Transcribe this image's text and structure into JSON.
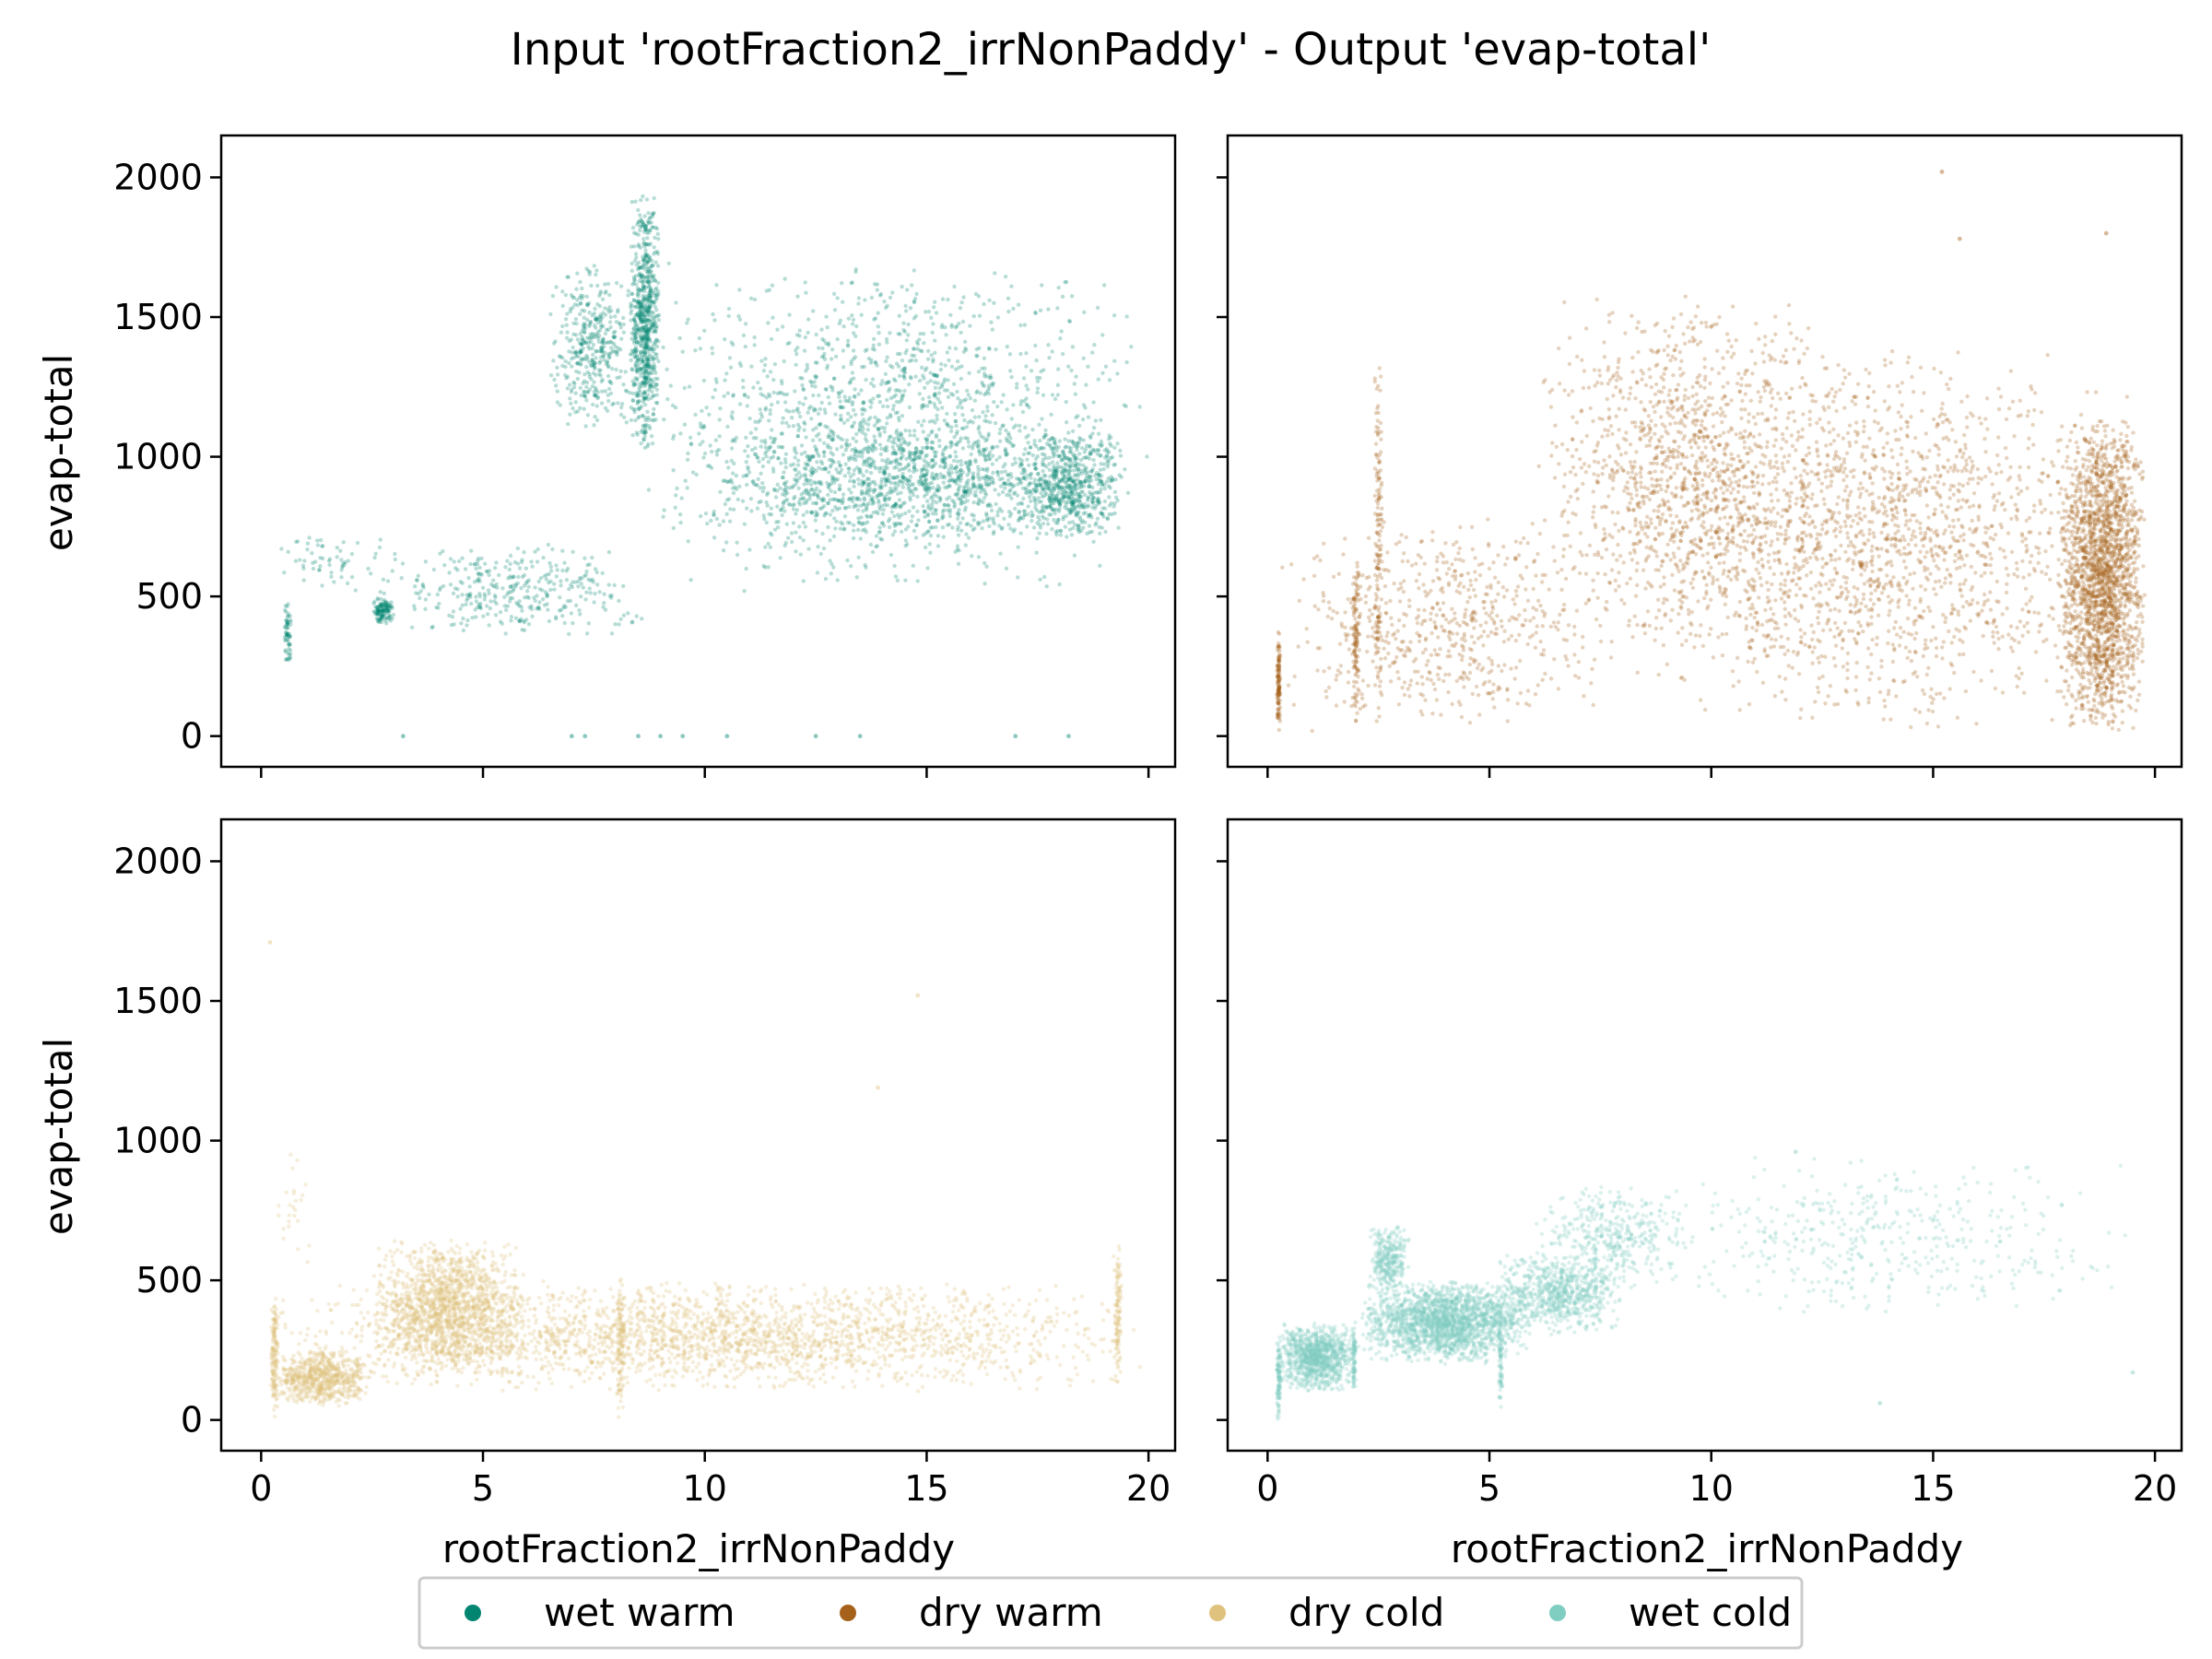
{
  "chart_data": {
    "type": "scatter",
    "title": "Input 'rootFraction2_irrNonPaddy' - Output 'evap-total'",
    "xlabel": "rootFraction2_irrNonPaddy",
    "ylabel": "evap-total",
    "xlim": [
      -0.9,
      20.6
    ],
    "ylim": [
      -110,
      2150
    ],
    "xticks": [
      0,
      5,
      10,
      15,
      20
    ],
    "yticks": [
      0,
      500,
      1000,
      1500,
      2000
    ],
    "grid": false,
    "legend_position": "bottom-center",
    "legend": [
      {
        "label": "wet warm",
        "color": "#018571"
      },
      {
        "label": "dry warm",
        "color": "#a6611a"
      },
      {
        "label": "dry cold",
        "color": "#dfc27d"
      },
      {
        "label": "wet cold",
        "color": "#80cdc1"
      }
    ],
    "panels": [
      {
        "name": "wet warm",
        "color": "#018571",
        "position": "top-left",
        "clusters": [
          {
            "x": [
              6.5,
              8.5
            ],
            "y": [
              1100,
              1700
            ],
            "n": 400
          },
          {
            "x": [
              8.3,
              9.0
            ],
            "y": [
              1000,
              1950
            ],
            "n": 700
          },
          {
            "x": [
              8.6,
              20.0
            ],
            "y": [
              500,
              1700
            ],
            "n": 1600
          },
          {
            "x": [
              10.0,
              19.5
            ],
            "y": [
              700,
              1100
            ],
            "n": 900
          },
          {
            "x": [
              2.5,
              9.0
            ],
            "y": [
              350,
              700
            ],
            "n": 350
          },
          {
            "x": [
              0.2,
              3.0
            ],
            "y": [
              500,
              750
            ],
            "n": 60
          },
          {
            "x": [
              0.5,
              0.7
            ],
            "y": [
              250,
              500
            ],
            "n": 60
          },
          {
            "x": [
              2.5,
              3.0
            ],
            "y": [
              400,
              500
            ],
            "n": 120
          },
          {
            "x": [
              17.0,
              19.5
            ],
            "y": [
              700,
              1100
            ],
            "n": 500
          }
        ],
        "outliers": [
          [
            3.2,
            0
          ],
          [
            7.0,
            0
          ],
          [
            7.3,
            0
          ],
          [
            8.5,
            0
          ],
          [
            9.0,
            0
          ],
          [
            9.5,
            0
          ],
          [
            10.5,
            0
          ],
          [
            12.5,
            0
          ],
          [
            13.5,
            0
          ],
          [
            17.0,
            0
          ],
          [
            18.2,
            0
          ]
        ]
      },
      {
        "name": "dry warm",
        "color": "#a6611a",
        "position": "top-right",
        "clusters": [
          {
            "x": [
              0.2,
              8.0
            ],
            "y": [
              0,
              800
            ],
            "n": 600
          },
          {
            "x": [
              6.0,
              13.0
            ],
            "y": [
              300,
              1600
            ],
            "n": 1200
          },
          {
            "x": [
              8.0,
              20.0
            ],
            "y": [
              0,
              1400
            ],
            "n": 1800
          },
          {
            "x": [
              17.8,
              19.8
            ],
            "y": [
              0,
              1150
            ],
            "n": 2000
          },
          {
            "x": [
              0.2,
              0.3
            ],
            "y": [
              0,
              380
            ],
            "n": 120
          },
          {
            "x": [
              1.9,
              2.1
            ],
            "y": [
              0,
              700
            ],
            "n": 120
          },
          {
            "x": [
              2.4,
              2.6
            ],
            "y": [
              0,
              1350
            ],
            "n": 150
          }
        ],
        "outliers": [
          [
            15.2,
            2020
          ],
          [
            15.6,
            1780
          ],
          [
            18.9,
            1800
          ]
        ]
      },
      {
        "name": "dry cold",
        "color": "#dfc27d",
        "position": "bottom-left",
        "clusters": [
          {
            "x": [
              0.2,
              20.0
            ],
            "y": [
              100,
              500
            ],
            "n": 2500
          },
          {
            "x": [
              2.5,
              6.0
            ],
            "y": [
              150,
              650
            ],
            "n": 1500
          },
          {
            "x": [
              0.2,
              2.5
            ],
            "y": [
              50,
              250
            ],
            "n": 700
          },
          {
            "x": [
              0.2,
              0.4
            ],
            "y": [
              0,
              450
            ],
            "n": 150
          },
          {
            "x": [
              8.0,
              8.2
            ],
            "y": [
              0,
              550
            ],
            "n": 120
          },
          {
            "x": [
              19.2,
              19.4
            ],
            "y": [
              100,
              650
            ],
            "n": 120
          },
          {
            "x": [
              0.3,
              1.2
            ],
            "y": [
              500,
              1050
            ],
            "n": 25
          }
        ],
        "outliers": [
          [
            0.2,
            1710
          ],
          [
            14.8,
            1520
          ],
          [
            13.9,
            1190
          ]
        ]
      },
      {
        "name": "wet cold",
        "color": "#80cdc1",
        "position": "bottom-right",
        "clusters": [
          {
            "x": [
              0.2,
              2.0
            ],
            "y": [
              100,
              350
            ],
            "n": 1000
          },
          {
            "x": [
              2.0,
              6.0
            ],
            "y": [
              200,
              500
            ],
            "n": 2000
          },
          {
            "x": [
              2.3,
              3.2
            ],
            "y": [
              450,
              700
            ],
            "n": 300
          },
          {
            "x": [
              5.0,
              8.0
            ],
            "y": [
              300,
              600
            ],
            "n": 700
          },
          {
            "x": [
              6.0,
              9.5
            ],
            "y": [
              450,
              850
            ],
            "n": 400
          },
          {
            "x": [
              8.0,
              19.5
            ],
            "y": [
              350,
              950
            ],
            "n": 450
          },
          {
            "x": [
              0.2,
              0.3
            ],
            "y": [
              0,
              300
            ],
            "n": 100
          },
          {
            "x": [
              5.2,
              5.3
            ],
            "y": [
              30,
              400
            ],
            "n": 80
          },
          {
            "x": [
              1.9,
              2.0
            ],
            "y": [
              90,
              350
            ],
            "n": 80
          }
        ],
        "outliers": [
          [
            19.5,
            170
          ],
          [
            13.8,
            60
          ],
          [
            17.9,
            770
          ],
          [
            11.9,
            960
          ]
        ]
      }
    ]
  }
}
